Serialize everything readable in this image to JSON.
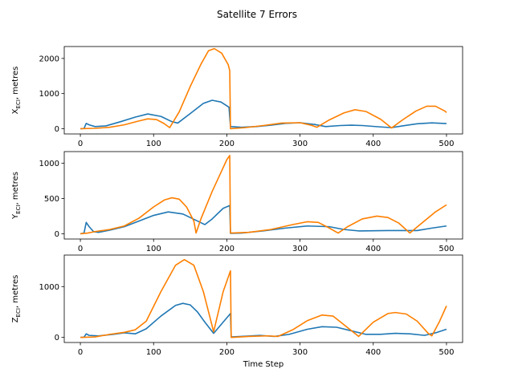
{
  "figure": {
    "title": "Satellite 7 Errors"
  },
  "chart_data": [
    {
      "type": "line",
      "title": "",
      "xlabel": "",
      "ylabel_main": "X",
      "ylabel_sub": "ECI",
      "ylabel_rest": ", metres",
      "xlim": [
        -22,
        522
      ],
      "ylim": [
        -150,
        2340
      ],
      "xticks": [
        0,
        100,
        200,
        300,
        400,
        500
      ],
      "yticks": [
        0,
        1000,
        2000
      ],
      "series": [
        {
          "color": "#1f77b4",
          "points": [
            [
              0,
              0
            ],
            [
              5,
              5
            ],
            [
              8,
              150
            ],
            [
              12,
              110
            ],
            [
              20,
              60
            ],
            [
              35,
              80
            ],
            [
              55,
              200
            ],
            [
              75,
              330
            ],
            [
              92,
              420
            ],
            [
              110,
              350
            ],
            [
              125,
              200
            ],
            [
              133,
              160
            ],
            [
              150,
              430
            ],
            [
              168,
              720
            ],
            [
              180,
              810
            ],
            [
              192,
              760
            ],
            [
              203,
              610
            ],
            [
              205,
              60
            ],
            [
              220,
              40
            ],
            [
              240,
              60
            ],
            [
              260,
              100
            ],
            [
              280,
              150
            ],
            [
              300,
              170
            ],
            [
              320,
              120
            ],
            [
              335,
              60
            ],
            [
              355,
              90
            ],
            [
              370,
              100
            ],
            [
              385,
              90
            ],
            [
              410,
              50
            ],
            [
              425,
              30
            ],
            [
              440,
              80
            ],
            [
              460,
              140
            ],
            [
              480,
              165
            ],
            [
              500,
              145
            ]
          ]
        },
        {
          "color": "#ff7f00",
          "points": [
            [
              0,
              0
            ],
            [
              20,
              10
            ],
            [
              40,
              40
            ],
            [
              60,
              110
            ],
            [
              78,
              210
            ],
            [
              92,
              280
            ],
            [
              104,
              260
            ],
            [
              114,
              150
            ],
            [
              122,
              30
            ],
            [
              135,
              480
            ],
            [
              150,
              1200
            ],
            [
              165,
              1850
            ],
            [
              175,
              2220
            ],
            [
              183,
              2280
            ],
            [
              193,
              2150
            ],
            [
              202,
              1820
            ],
            [
              204,
              1650
            ],
            [
              205,
              0
            ],
            [
              225,
              30
            ],
            [
              250,
              90
            ],
            [
              275,
              160
            ],
            [
              300,
              170
            ],
            [
              315,
              100
            ],
            [
              323,
              40
            ],
            [
              340,
              250
            ],
            [
              360,
              450
            ],
            [
              375,
              540
            ],
            [
              390,
              490
            ],
            [
              410,
              270
            ],
            [
              425,
              20
            ],
            [
              440,
              250
            ],
            [
              458,
              500
            ],
            [
              473,
              640
            ],
            [
              485,
              640
            ],
            [
              498,
              500
            ],
            [
              500,
              460
            ]
          ]
        }
      ]
    },
    {
      "type": "line",
      "title": "",
      "xlabel": "",
      "ylabel_main": "Y",
      "ylabel_sub": "ECI",
      "ylabel_rest": ", metres",
      "xlim": [
        -22,
        522
      ],
      "ylim": [
        -75,
        1165
      ],
      "xticks": [
        0,
        100,
        200,
        300,
        400,
        500
      ],
      "yticks": [
        0,
        500,
        1000
      ],
      "series": [
        {
          "color": "#1f77b4",
          "points": [
            [
              0,
              0
            ],
            [
              5,
              10
            ],
            [
              8,
              160
            ],
            [
              12,
              100
            ],
            [
              18,
              30
            ],
            [
              25,
              20
            ],
            [
              40,
              50
            ],
            [
              60,
              100
            ],
            [
              80,
              180
            ],
            [
              100,
              260
            ],
            [
              120,
              310
            ],
            [
              140,
              280
            ],
            [
              160,
              180
            ],
            [
              170,
              130
            ],
            [
              180,
              210
            ],
            [
              195,
              360
            ],
            [
              204,
              400
            ],
            [
              205,
              5
            ],
            [
              220,
              10
            ],
            [
              250,
              40
            ],
            [
              280,
              80
            ],
            [
              310,
              110
            ],
            [
              340,
              100
            ],
            [
              360,
              60
            ],
            [
              380,
              40
            ],
            [
              420,
              45
            ],
            [
              460,
              45
            ],
            [
              480,
              80
            ],
            [
              500,
              110
            ]
          ]
        },
        {
          "color": "#ff7f00",
          "points": [
            [
              0,
              0
            ],
            [
              10,
              10
            ],
            [
              20,
              30
            ],
            [
              40,
              60
            ],
            [
              60,
              110
            ],
            [
              80,
              220
            ],
            [
              100,
              380
            ],
            [
              115,
              480
            ],
            [
              125,
              510
            ],
            [
              135,
              490
            ],
            [
              145,
              380
            ],
            [
              155,
              180
            ],
            [
              158,
              10
            ],
            [
              165,
              220
            ],
            [
              180,
              600
            ],
            [
              192,
              870
            ],
            [
              200,
              1050
            ],
            [
              204,
              1110
            ],
            [
              205,
              10
            ],
            [
              230,
              20
            ],
            [
              260,
              60
            ],
            [
              290,
              130
            ],
            [
              310,
              170
            ],
            [
              325,
              160
            ],
            [
              340,
              80
            ],
            [
              352,
              10
            ],
            [
              365,
              100
            ],
            [
              385,
              210
            ],
            [
              405,
              250
            ],
            [
              420,
              230
            ],
            [
              435,
              150
            ],
            [
              450,
              10
            ],
            [
              465,
              140
            ],
            [
              485,
              310
            ],
            [
              500,
              410
            ]
          ]
        }
      ]
    },
    {
      "type": "line",
      "title": "",
      "xlabel": "Time Step",
      "ylabel_main": "Z",
      "ylabel_sub": "ECI",
      "ylabel_rest": ", metres",
      "xlim": [
        -22,
        522
      ],
      "ylim": [
        -100,
        1620
      ],
      "xticks": [
        0,
        100,
        200,
        300,
        400,
        500
      ],
      "yticks": [
        0,
        1000
      ],
      "series": [
        {
          "color": "#1f77b4",
          "points": [
            [
              0,
              0
            ],
            [
              5,
              5
            ],
            [
              8,
              70
            ],
            [
              12,
              40
            ],
            [
              25,
              30
            ],
            [
              45,
              60
            ],
            [
              60,
              90
            ],
            [
              75,
              70
            ],
            [
              90,
              170
            ],
            [
              110,
              420
            ],
            [
              130,
              630
            ],
            [
              140,
              670
            ],
            [
              150,
              640
            ],
            [
              160,
              500
            ],
            [
              170,
              300
            ],
            [
              182,
              80
            ],
            [
              195,
              300
            ],
            [
              205,
              470
            ],
            [
              206,
              10
            ],
            [
              220,
              20
            ],
            [
              245,
              40
            ],
            [
              265,
              20
            ],
            [
              285,
              60
            ],
            [
              310,
              160
            ],
            [
              330,
              210
            ],
            [
              350,
              200
            ],
            [
              370,
              130
            ],
            [
              390,
              60
            ],
            [
              410,
              60
            ],
            [
              430,
              80
            ],
            [
              450,
              70
            ],
            [
              470,
              40
            ],
            [
              485,
              90
            ],
            [
              500,
              160
            ]
          ]
        },
        {
          "color": "#ff7f00",
          "points": [
            [
              0,
              0
            ],
            [
              20,
              10
            ],
            [
              40,
              60
            ],
            [
              60,
              100
            ],
            [
              75,
              150
            ],
            [
              90,
              320
            ],
            [
              110,
              900
            ],
            [
              130,
              1420
            ],
            [
              142,
              1530
            ],
            [
              155,
              1420
            ],
            [
              168,
              900
            ],
            [
              182,
              110
            ],
            [
              195,
              900
            ],
            [
              205,
              1310
            ],
            [
              206,
              0
            ],
            [
              230,
              20
            ],
            [
              255,
              30
            ],
            [
              270,
              20
            ],
            [
              290,
              150
            ],
            [
              310,
              330
            ],
            [
              330,
              440
            ],
            [
              345,
              420
            ],
            [
              360,
              250
            ],
            [
              380,
              20
            ],
            [
              400,
              300
            ],
            [
              420,
              470
            ],
            [
              430,
              490
            ],
            [
              445,
              460
            ],
            [
              460,
              320
            ],
            [
              475,
              80
            ],
            [
              480,
              30
            ],
            [
              490,
              300
            ],
            [
              500,
              620
            ]
          ]
        }
      ]
    }
  ]
}
